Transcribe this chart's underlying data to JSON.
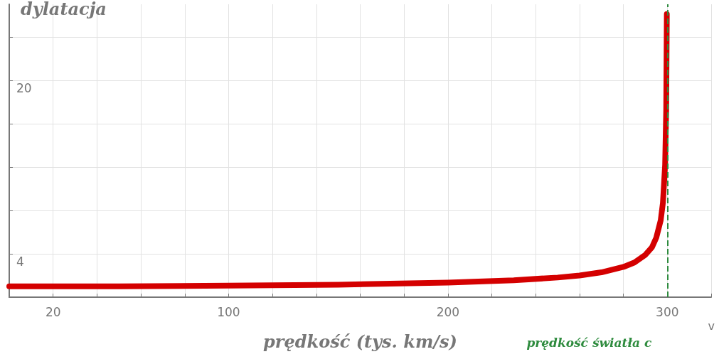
{
  "chart_data": {
    "type": "line",
    "xlabel": "prędkość (tys. km/s)",
    "ylabel": "dylatacja",
    "x": [
      0,
      20,
      50,
      100,
      150,
      200,
      230,
      250,
      260,
      270,
      280,
      285,
      290,
      293,
      295,
      297,
      298,
      299,
      299.5,
      299.78
    ],
    "series": [
      {
        "color": "#d40000",
        "values": [
          1,
          1,
          1,
          1.06,
          1.15,
          1.34,
          1.56,
          1.81,
          2,
          2.29,
          2.79,
          3.2,
          3.9,
          4.6,
          5.5,
          7.1,
          8.7,
          12.2,
          17.3,
          26.1
        ]
      }
    ],
    "xlim": [
      0,
      320
    ],
    "xticks": [
      {
        "value": 0,
        "label": null
      },
      20,
      {
        "value": 40,
        "label": null
      },
      {
        "value": 60,
        "label": null
      },
      {
        "value": 80,
        "label": null
      },
      100,
      {
        "value": 120,
        "label": null
      },
      {
        "value": 140,
        "label": null
      },
      {
        "value": 160,
        "label": null
      },
      {
        "value": 180,
        "label": null
      },
      200,
      {
        "value": 220,
        "label": null
      },
      {
        "value": 240,
        "label": null
      },
      {
        "value": 260,
        "label": null
      },
      {
        "value": 280,
        "label": null
      },
      300,
      {
        "value": 320,
        "label": null
      }
    ],
    "ylim": [
      0,
      27
    ],
    "yticks": [
      {
        "value": 0,
        "label": null
      },
      4,
      {
        "value": 8,
        "label": null
      },
      {
        "value": 12,
        "label": null
      },
      {
        "value": 16,
        "label": null
      },
      20,
      {
        "value": 24,
        "label": null
      }
    ],
    "ref_lines": [
      {
        "axis": "x",
        "value": 300,
        "label": "prędkość światła c",
        "color": "#2e8b3e",
        "line_style": "dashed"
      }
    ],
    "annotations": [
      "v"
    ],
    "grid": true,
    "line_style": "solid"
  }
}
